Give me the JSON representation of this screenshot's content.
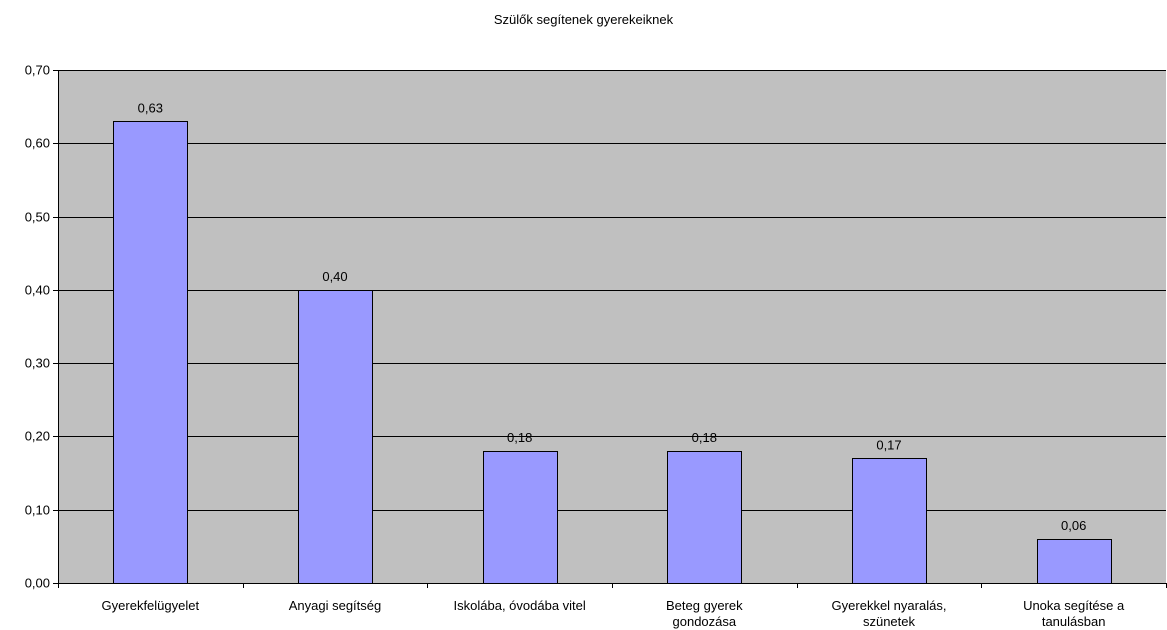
{
  "chart_data": {
    "type": "bar",
    "title": "Szülők segítenek gyerekeiknek",
    "categories": [
      [
        "Gyerekfelügyelet"
      ],
      [
        "Anyagi segítség"
      ],
      [
        "Iskolába, óvodába vitel"
      ],
      [
        "Beteg gyerek",
        "gondozása"
      ],
      [
        "Gyerekkel nyaralás,",
        "szünetek"
      ],
      [
        "Unoka segítése a",
        "tanulásban"
      ]
    ],
    "values": [
      0.63,
      0.4,
      0.18,
      0.18,
      0.17,
      0.06
    ],
    "value_labels": [
      "0,63",
      "0,40",
      "0,18",
      "0,18",
      "0,17",
      "0,06"
    ],
    "ylim": [
      0,
      0.7
    ],
    "yticks": [
      0.0,
      0.1,
      0.2,
      0.3,
      0.4,
      0.5,
      0.6,
      0.7
    ],
    "ytick_labels": [
      "0,00",
      "0,10",
      "0,20",
      "0,30",
      "0,40",
      "0,50",
      "0,60",
      "0,70"
    ],
    "xlabel": "",
    "ylabel": "",
    "grid": true,
    "legend": "none",
    "colors": {
      "plot_background": "#c0c0c0",
      "bar_fill": "#9999ff",
      "bar_stroke": "#000000",
      "gridline": "#000000"
    }
  }
}
